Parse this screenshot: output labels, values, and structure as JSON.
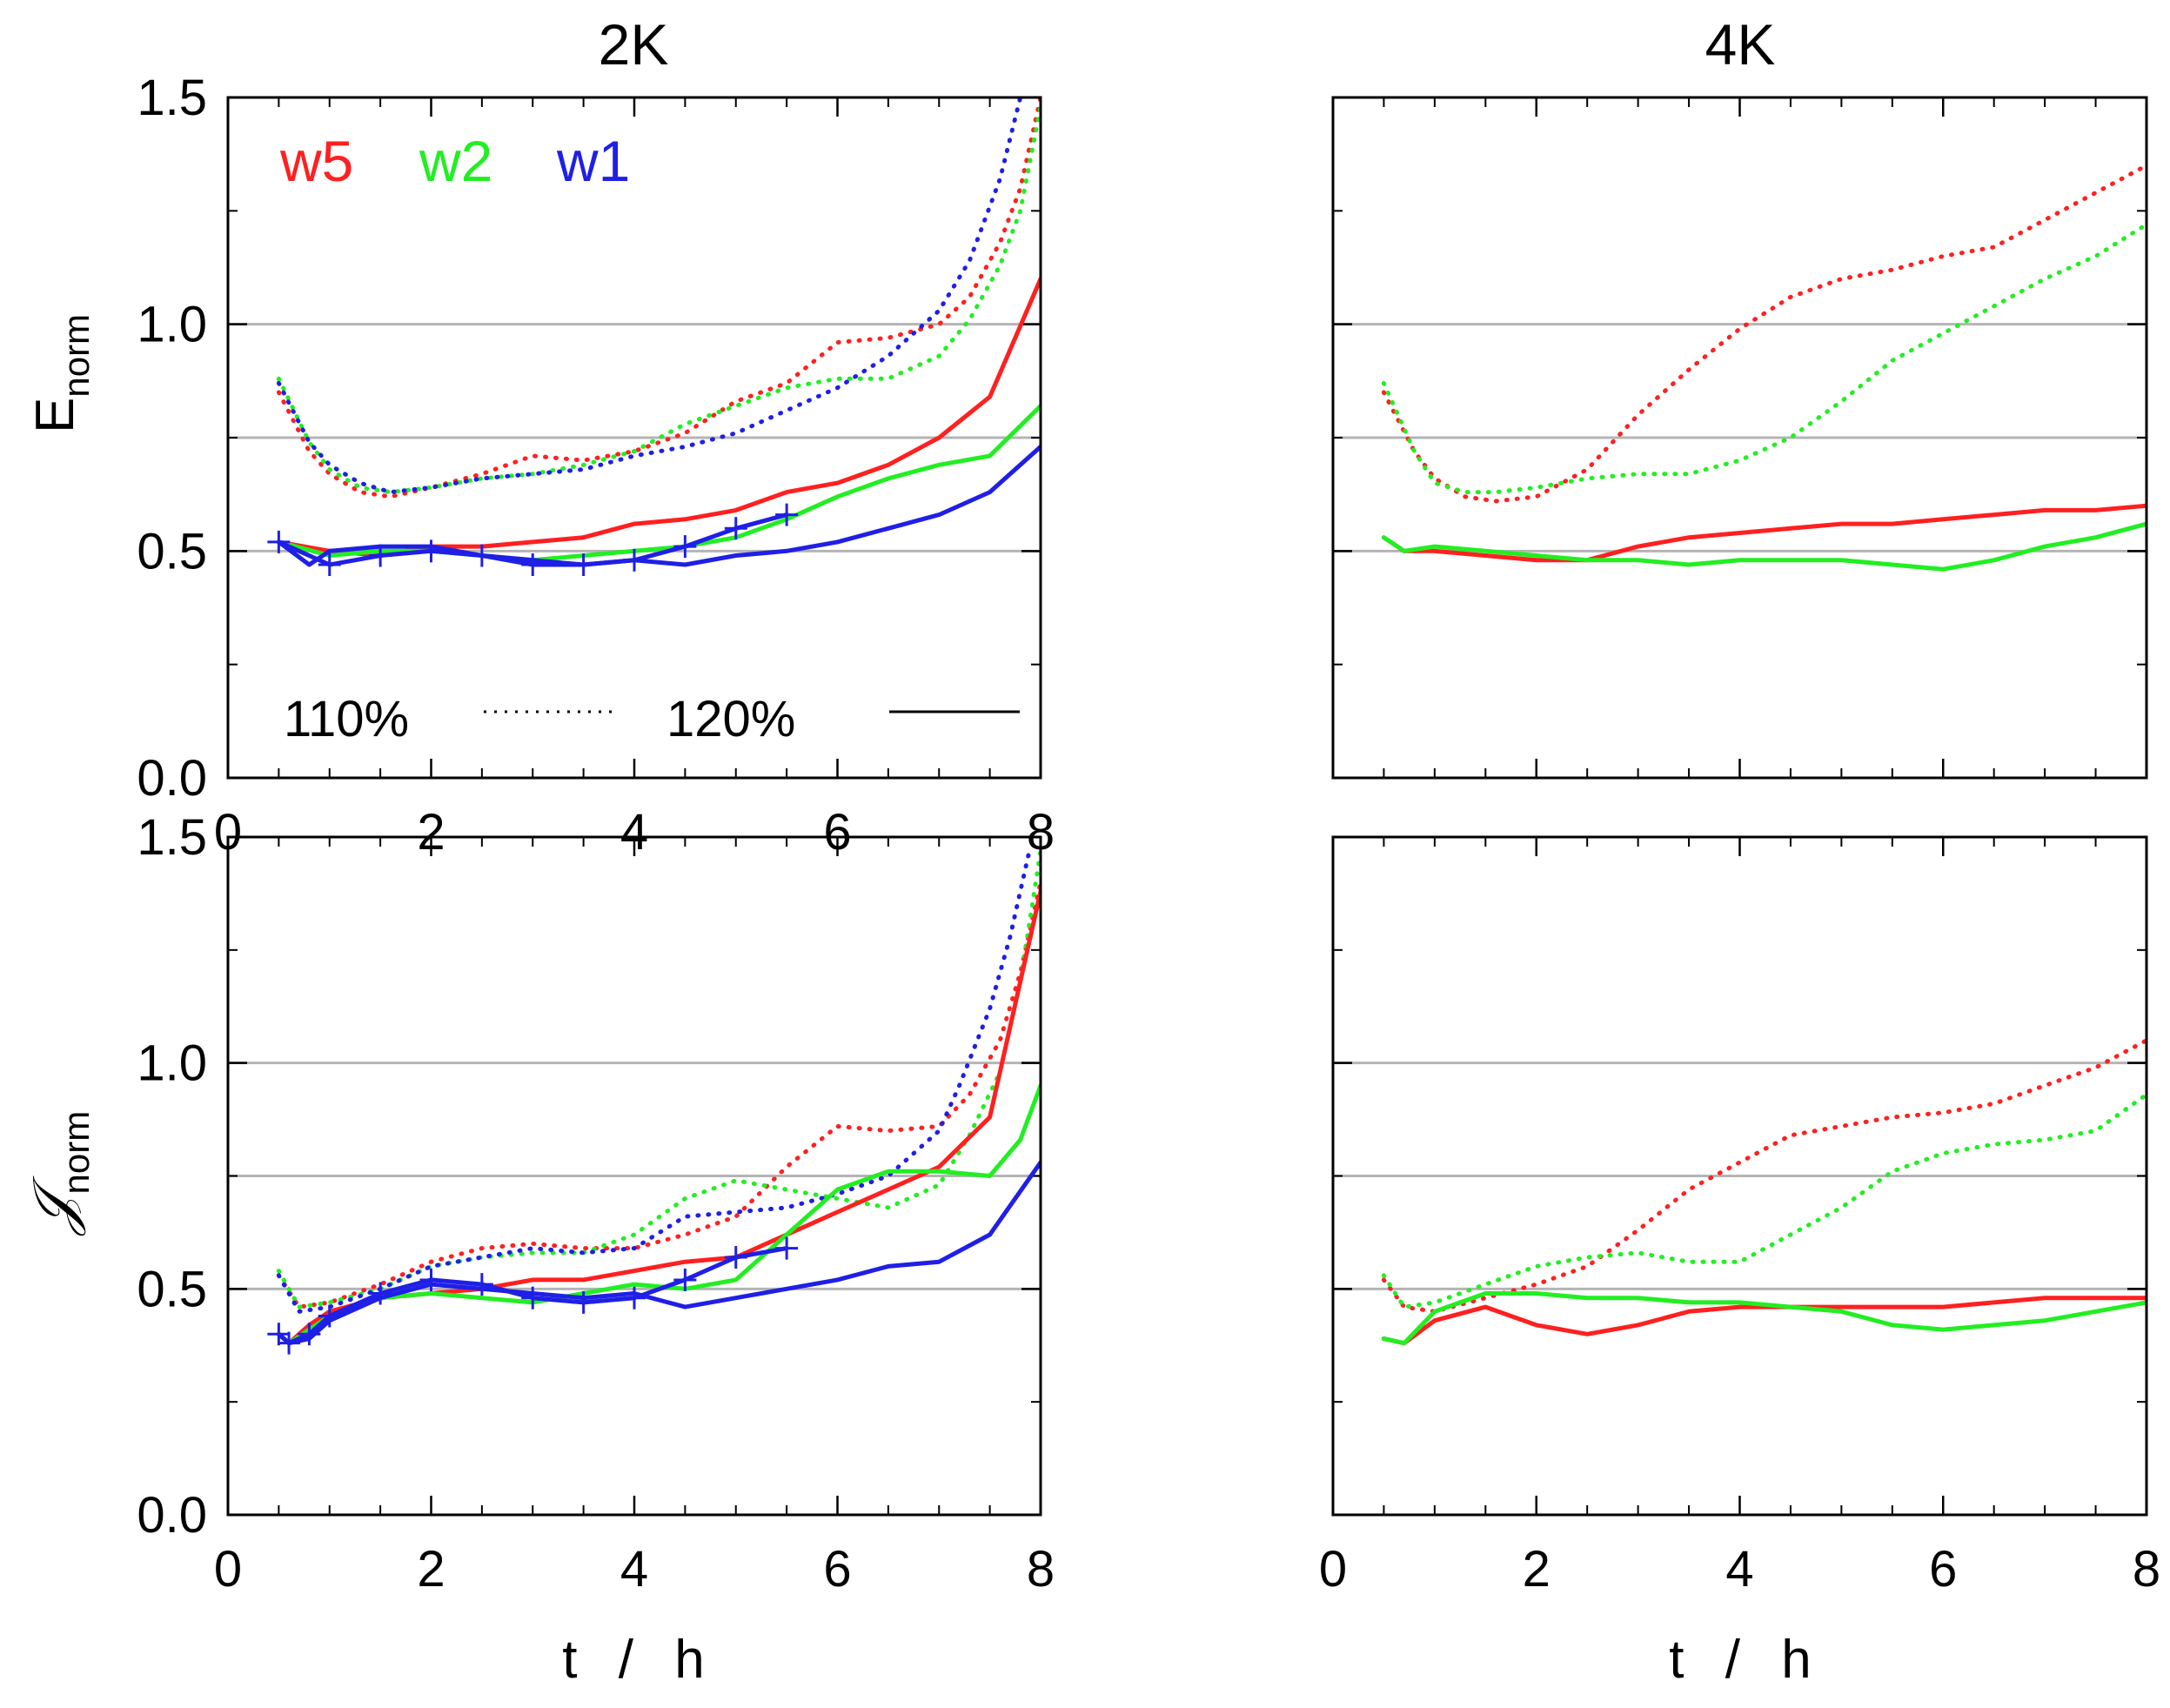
{
  "colors": {
    "w5": "#ff2020",
    "w2": "#22ee22",
    "w1": "#1f1fe6",
    "grid": "#b4b4b4",
    "axis": "#000000"
  },
  "column_titles": [
    "2K",
    "4K"
  ],
  "legend": {
    "series_labels": [
      "w5",
      "w2",
      "w1"
    ],
    "style_labels": [
      "110%",
      "120%"
    ]
  },
  "chart_data": [
    {
      "id": "E-2K",
      "type": "line",
      "column_title": "2K",
      "ylabel": "E",
      "ylabel_sub": "norm",
      "xlabel": "",
      "xlim": [
        0,
        8
      ],
      "ylim": [
        0,
        1.5
      ],
      "xticks": [
        "0",
        "2",
        "4",
        "6",
        "8"
      ],
      "yticks": [
        "0.0",
        "0.5",
        "1.0",
        "1.5"
      ],
      "reference_lines": [
        0.5,
        0.75,
        1.0
      ],
      "series": [
        {
          "name": "w5",
          "style": "dotted",
          "x": [
            0.5,
            0.8,
            1.0,
            1.3,
            1.6,
            2.0,
            2.5,
            3.0,
            3.5,
            4.0,
            4.5,
            5.0,
            5.5,
            6.0,
            6.5,
            7.0,
            7.3,
            7.6,
            7.8,
            8.0
          ],
          "y": [
            0.85,
            0.72,
            0.67,
            0.63,
            0.62,
            0.64,
            0.67,
            0.71,
            0.7,
            0.72,
            0.76,
            0.83,
            0.87,
            0.96,
            0.97,
            1.0,
            1.06,
            1.18,
            1.3,
            1.5
          ]
        },
        {
          "name": "w2",
          "style": "dotted",
          "x": [
            0.5,
            0.8,
            1.0,
            1.3,
            1.6,
            2.0,
            2.5,
            3.0,
            3.5,
            4.0,
            4.5,
            5.0,
            5.5,
            6.0,
            6.5,
            7.0,
            7.3,
            7.6,
            7.8,
            8.0
          ],
          "y": [
            0.88,
            0.74,
            0.68,
            0.64,
            0.63,
            0.64,
            0.66,
            0.67,
            0.69,
            0.72,
            0.78,
            0.82,
            0.86,
            0.88,
            0.88,
            0.93,
            1.01,
            1.13,
            1.25,
            1.48
          ]
        },
        {
          "name": "w1",
          "style": "dotted",
          "x": [
            0.5,
            0.8,
            1.0,
            1.3,
            1.6,
            2.0,
            2.5,
            3.0,
            3.5,
            4.0,
            4.5,
            5.0,
            5.5,
            6.0,
            6.5,
            7.0,
            7.3,
            7.6,
            7.8
          ],
          "y": [
            0.87,
            0.74,
            0.69,
            0.65,
            0.63,
            0.64,
            0.66,
            0.67,
            0.68,
            0.71,
            0.73,
            0.76,
            0.81,
            0.86,
            0.93,
            1.03,
            1.14,
            1.32,
            1.5
          ]
        },
        {
          "name": "w5",
          "style": "solid",
          "x": [
            0.5,
            1.0,
            1.5,
            2.0,
            2.5,
            3.0,
            3.5,
            4.0,
            4.5,
            5.0,
            5.5,
            6.0,
            6.5,
            7.0,
            7.5,
            8.0
          ],
          "y": [
            0.52,
            0.5,
            0.49,
            0.51,
            0.51,
            0.52,
            0.53,
            0.56,
            0.57,
            0.59,
            0.63,
            0.65,
            0.69,
            0.75,
            0.84,
            1.1
          ]
        },
        {
          "name": "w2",
          "style": "solid",
          "x": [
            0.5,
            1.0,
            1.5,
            2.0,
            2.5,
            3.0,
            3.5,
            4.0,
            4.5,
            5.0,
            5.5,
            6.0,
            6.5,
            7.0,
            7.5,
            8.0
          ],
          "y": [
            0.52,
            0.49,
            0.5,
            0.5,
            0.49,
            0.48,
            0.49,
            0.5,
            0.51,
            0.53,
            0.57,
            0.62,
            0.66,
            0.69,
            0.71,
            0.82
          ]
        },
        {
          "name": "w1",
          "style": "solid",
          "x": [
            0.5,
            0.8,
            1.0,
            1.5,
            2.0,
            2.5,
            3.0,
            3.5,
            4.0,
            4.5,
            5.0,
            5.5,
            6.0,
            6.5,
            7.0,
            7.5,
            8.0
          ],
          "y": [
            0.52,
            0.47,
            0.5,
            0.51,
            0.51,
            0.49,
            0.48,
            0.47,
            0.48,
            0.47,
            0.49,
            0.5,
            0.52,
            0.55,
            0.58,
            0.63,
            0.73
          ]
        },
        {
          "name": "w1",
          "style": "solid-plus",
          "x": [
            0.5,
            1.0,
            1.5,
            2.0,
            2.5,
            3.0,
            3.5,
            4.0,
            4.5,
            5.0,
            5.5
          ],
          "y": [
            0.52,
            0.47,
            0.49,
            0.5,
            0.49,
            0.47,
            0.47,
            0.48,
            0.51,
            0.55,
            0.58
          ]
        }
      ]
    },
    {
      "id": "E-4K",
      "type": "line",
      "column_title": "4K",
      "ylabel": "",
      "xlabel": "",
      "xlim": [
        0,
        8
      ],
      "ylim": [
        0,
        1.5
      ],
      "xticks": [],
      "yticks": [],
      "reference_lines": [
        0.5,
        0.75,
        1.0
      ],
      "series": [
        {
          "name": "w5",
          "style": "dotted",
          "x": [
            0.5,
            0.8,
            1.0,
            1.3,
            1.6,
            2.0,
            2.5,
            3.0,
            3.5,
            4.0,
            4.5,
            5.0,
            5.5,
            6.0,
            6.5,
            7.0,
            7.5,
            8.0
          ],
          "y": [
            0.85,
            0.72,
            0.66,
            0.62,
            0.61,
            0.62,
            0.68,
            0.8,
            0.9,
            0.99,
            1.06,
            1.1,
            1.12,
            1.15,
            1.17,
            1.23,
            1.29,
            1.35
          ]
        },
        {
          "name": "w2",
          "style": "dotted",
          "x": [
            0.5,
            0.8,
            1.0,
            1.3,
            1.6,
            2.0,
            2.5,
            3.0,
            3.5,
            4.0,
            4.5,
            5.0,
            5.5,
            6.0,
            6.5,
            7.0,
            7.5,
            8.0
          ],
          "y": [
            0.87,
            0.72,
            0.65,
            0.63,
            0.63,
            0.64,
            0.66,
            0.67,
            0.67,
            0.7,
            0.75,
            0.83,
            0.92,
            0.98,
            1.04,
            1.1,
            1.15,
            1.22
          ]
        },
        {
          "name": "w5",
          "style": "solid",
          "x": [
            0.5,
            0.7,
            1.0,
            1.5,
            2.0,
            2.5,
            3.0,
            3.5,
            4.0,
            4.5,
            5.0,
            5.5,
            6.0,
            6.5,
            7.0,
            7.5,
            8.0
          ],
          "y": [
            0.53,
            0.5,
            0.5,
            0.49,
            0.48,
            0.48,
            0.51,
            0.53,
            0.54,
            0.55,
            0.56,
            0.56,
            0.57,
            0.58,
            0.59,
            0.59,
            0.6
          ]
        },
        {
          "name": "w2",
          "style": "solid",
          "x": [
            0.5,
            0.7,
            1.0,
            1.5,
            2.0,
            2.5,
            3.0,
            3.5,
            4.0,
            4.5,
            5.0,
            5.5,
            6.0,
            6.5,
            7.0,
            7.5,
            8.0
          ],
          "y": [
            0.53,
            0.5,
            0.51,
            0.5,
            0.49,
            0.48,
            0.48,
            0.47,
            0.48,
            0.48,
            0.48,
            0.47,
            0.46,
            0.48,
            0.51,
            0.53,
            0.56
          ]
        }
      ]
    },
    {
      "id": "J-2K",
      "type": "line",
      "column_title": "",
      "ylabel": "𝒥",
      "ylabel_sub": "norm",
      "xlabel": "t / h",
      "xlim": [
        0,
        8
      ],
      "ylim": [
        0,
        1.5
      ],
      "xticks": [
        "0",
        "2",
        "4",
        "6",
        "8"
      ],
      "yticks": [
        "0.0",
        "0.5",
        "1.0",
        "1.5"
      ],
      "reference_lines": [
        0.5,
        0.75,
        1.0
      ],
      "series": [
        {
          "name": "w5",
          "style": "dotted",
          "x": [
            0.5,
            0.7,
            1.0,
            1.5,
            2.0,
            2.5,
            3.0,
            3.5,
            4.0,
            4.5,
            5.0,
            5.5,
            6.0,
            6.5,
            7.0,
            7.3,
            7.6,
            7.8,
            8.0
          ],
          "y": [
            0.53,
            0.46,
            0.47,
            0.51,
            0.56,
            0.59,
            0.6,
            0.59,
            0.59,
            0.62,
            0.66,
            0.77,
            0.86,
            0.85,
            0.86,
            0.93,
            1.05,
            1.2,
            1.4
          ]
        },
        {
          "name": "w2",
          "style": "dotted",
          "x": [
            0.5,
            0.7,
            1.0,
            1.5,
            2.0,
            2.5,
            3.0,
            3.5,
            4.0,
            4.5,
            5.0,
            5.5,
            6.0,
            6.5,
            7.0,
            7.3,
            7.6,
            7.8,
            8.0
          ],
          "y": [
            0.54,
            0.46,
            0.47,
            0.5,
            0.55,
            0.57,
            0.58,
            0.58,
            0.62,
            0.7,
            0.74,
            0.72,
            0.7,
            0.68,
            0.73,
            0.84,
            0.98,
            1.18,
            1.47
          ]
        },
        {
          "name": "w1",
          "style": "dotted",
          "x": [
            0.5,
            0.7,
            1.0,
            1.5,
            2.0,
            2.5,
            3.0,
            3.5,
            4.0,
            4.5,
            5.0,
            5.5,
            6.0,
            6.5,
            7.0,
            7.2,
            7.5,
            7.7,
            7.9
          ],
          "y": [
            0.53,
            0.45,
            0.46,
            0.5,
            0.55,
            0.57,
            0.59,
            0.58,
            0.59,
            0.66,
            0.67,
            0.68,
            0.71,
            0.75,
            0.85,
            0.95,
            1.12,
            1.28,
            1.48
          ]
        },
        {
          "name": "w5",
          "style": "solid",
          "x": [
            0.5,
            0.6,
            0.8,
            1.0,
            1.5,
            2.0,
            2.5,
            3.0,
            3.5,
            4.0,
            4.5,
            5.0,
            5.5,
            6.0,
            6.5,
            7.0,
            7.5,
            8.0
          ],
          "y": [
            0.4,
            0.38,
            0.42,
            0.45,
            0.48,
            0.49,
            0.5,
            0.52,
            0.52,
            0.54,
            0.56,
            0.57,
            0.62,
            0.67,
            0.72,
            0.77,
            0.88,
            1.38
          ]
        },
        {
          "name": "w2",
          "style": "solid",
          "x": [
            0.5,
            0.6,
            0.8,
            1.0,
            1.5,
            2.0,
            2.5,
            3.0,
            3.5,
            4.0,
            4.5,
            5.0,
            5.5,
            6.0,
            6.5,
            7.0,
            7.5,
            7.8,
            8.0
          ],
          "y": [
            0.4,
            0.38,
            0.41,
            0.44,
            0.48,
            0.49,
            0.48,
            0.47,
            0.49,
            0.51,
            0.5,
            0.52,
            0.62,
            0.72,
            0.76,
            0.76,
            0.75,
            0.83,
            0.95
          ]
        },
        {
          "name": "w1",
          "style": "solid",
          "x": [
            0.5,
            0.6,
            0.8,
            1.0,
            1.5,
            2.0,
            2.5,
            3.0,
            3.5,
            4.0,
            4.5,
            5.0,
            5.5,
            6.0,
            6.5,
            7.0,
            7.5,
            8.0
          ],
          "y": [
            0.4,
            0.38,
            0.39,
            0.43,
            0.48,
            0.51,
            0.5,
            0.49,
            0.48,
            0.49,
            0.46,
            0.48,
            0.5,
            0.52,
            0.55,
            0.56,
            0.62,
            0.78
          ]
        },
        {
          "name": "w1",
          "style": "solid-plus",
          "x": [
            0.5,
            0.6,
            0.8,
            1.0,
            1.5,
            2.0,
            2.5,
            3.0,
            3.5,
            4.0,
            4.5,
            5.0,
            5.5
          ],
          "y": [
            0.4,
            0.38,
            0.4,
            0.44,
            0.49,
            0.52,
            0.51,
            0.48,
            0.47,
            0.48,
            0.52,
            0.57,
            0.59
          ]
        }
      ]
    },
    {
      "id": "J-4K",
      "type": "line",
      "column_title": "",
      "ylabel": "",
      "xlabel": "t / h",
      "xlim": [
        0,
        8
      ],
      "ylim": [
        0,
        1.5
      ],
      "xticks": [
        "0",
        "2",
        "4",
        "6",
        "8"
      ],
      "yticks": [],
      "reference_lines": [
        0.5,
        0.75,
        1.0
      ],
      "series": [
        {
          "name": "w5",
          "style": "dotted",
          "x": [
            0.5,
            0.7,
            1.0,
            1.5,
            2.0,
            2.5,
            3.0,
            3.5,
            4.0,
            4.5,
            5.0,
            5.5,
            6.0,
            6.5,
            7.0,
            7.5,
            8.0
          ],
          "y": [
            0.52,
            0.46,
            0.45,
            0.48,
            0.51,
            0.55,
            0.63,
            0.72,
            0.78,
            0.84,
            0.86,
            0.88,
            0.89,
            0.91,
            0.95,
            0.99,
            1.05
          ]
        },
        {
          "name": "w2",
          "style": "dotted",
          "x": [
            0.5,
            0.7,
            1.0,
            1.5,
            2.0,
            2.5,
            3.0,
            3.5,
            4.0,
            4.5,
            5.0,
            5.5,
            6.0,
            6.5,
            7.0,
            7.5,
            8.0
          ],
          "y": [
            0.53,
            0.46,
            0.47,
            0.51,
            0.55,
            0.57,
            0.58,
            0.56,
            0.56,
            0.62,
            0.68,
            0.76,
            0.8,
            0.82,
            0.83,
            0.85,
            0.93
          ]
        },
        {
          "name": "w5",
          "style": "solid",
          "x": [
            0.5,
            0.7,
            1.0,
            1.5,
            2.0,
            2.5,
            3.0,
            3.5,
            4.0,
            4.5,
            5.0,
            5.5,
            6.0,
            6.5,
            7.0,
            7.5,
            8.0
          ],
          "y": [
            0.39,
            0.38,
            0.43,
            0.46,
            0.42,
            0.4,
            0.42,
            0.45,
            0.46,
            0.46,
            0.46,
            0.46,
            0.46,
            0.47,
            0.48,
            0.48,
            0.48
          ]
        },
        {
          "name": "w2",
          "style": "solid",
          "x": [
            0.5,
            0.7,
            1.0,
            1.5,
            2.0,
            2.5,
            3.0,
            3.5,
            4.0,
            4.5,
            5.0,
            5.5,
            6.0,
            6.5,
            7.0,
            7.5,
            8.0
          ],
          "y": [
            0.39,
            0.38,
            0.45,
            0.49,
            0.49,
            0.48,
            0.48,
            0.47,
            0.47,
            0.46,
            0.45,
            0.42,
            0.41,
            0.42,
            0.43,
            0.45,
            0.47
          ]
        }
      ]
    }
  ]
}
